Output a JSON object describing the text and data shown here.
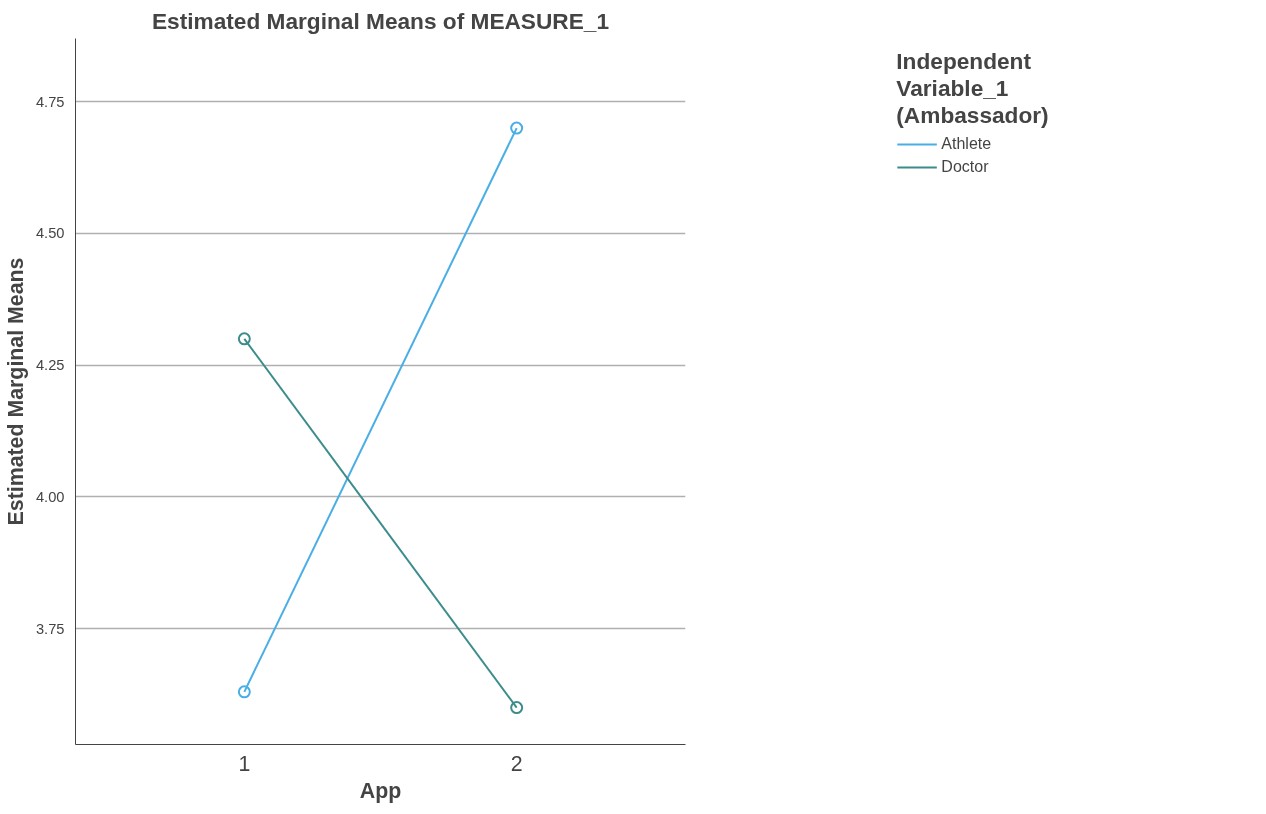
{
  "chart_data": {
    "type": "line",
    "title": "Estimated Marginal Means of MEASURE_1",
    "xlabel": "App",
    "ylabel": "Estimated Marginal Means",
    "legend_title": "Independent\nVariable_1\n(Ambassador)",
    "categories": [
      "1",
      "2"
    ],
    "series": [
      {
        "name": "Athlete",
        "color": "#4aaee6",
        "values": [
          3.63,
          4.7
        ]
      },
      {
        "name": "Doctor",
        "color": "#3d8c8c",
        "values": [
          4.3,
          3.6
        ]
      }
    ],
    "ylim": [
      3.53,
      4.87
    ],
    "yticks": [
      {
        "value": 3.75,
        "label": "3.75"
      },
      {
        "value": 4.0,
        "label": "4.00"
      },
      {
        "value": 4.25,
        "label": "4.25"
      },
      {
        "value": 4.5,
        "label": "4.50"
      },
      {
        "value": 4.75,
        "label": "4.75"
      }
    ],
    "grid": "y",
    "legend": "top right",
    "marker": "circle",
    "line_style": "solid"
  }
}
